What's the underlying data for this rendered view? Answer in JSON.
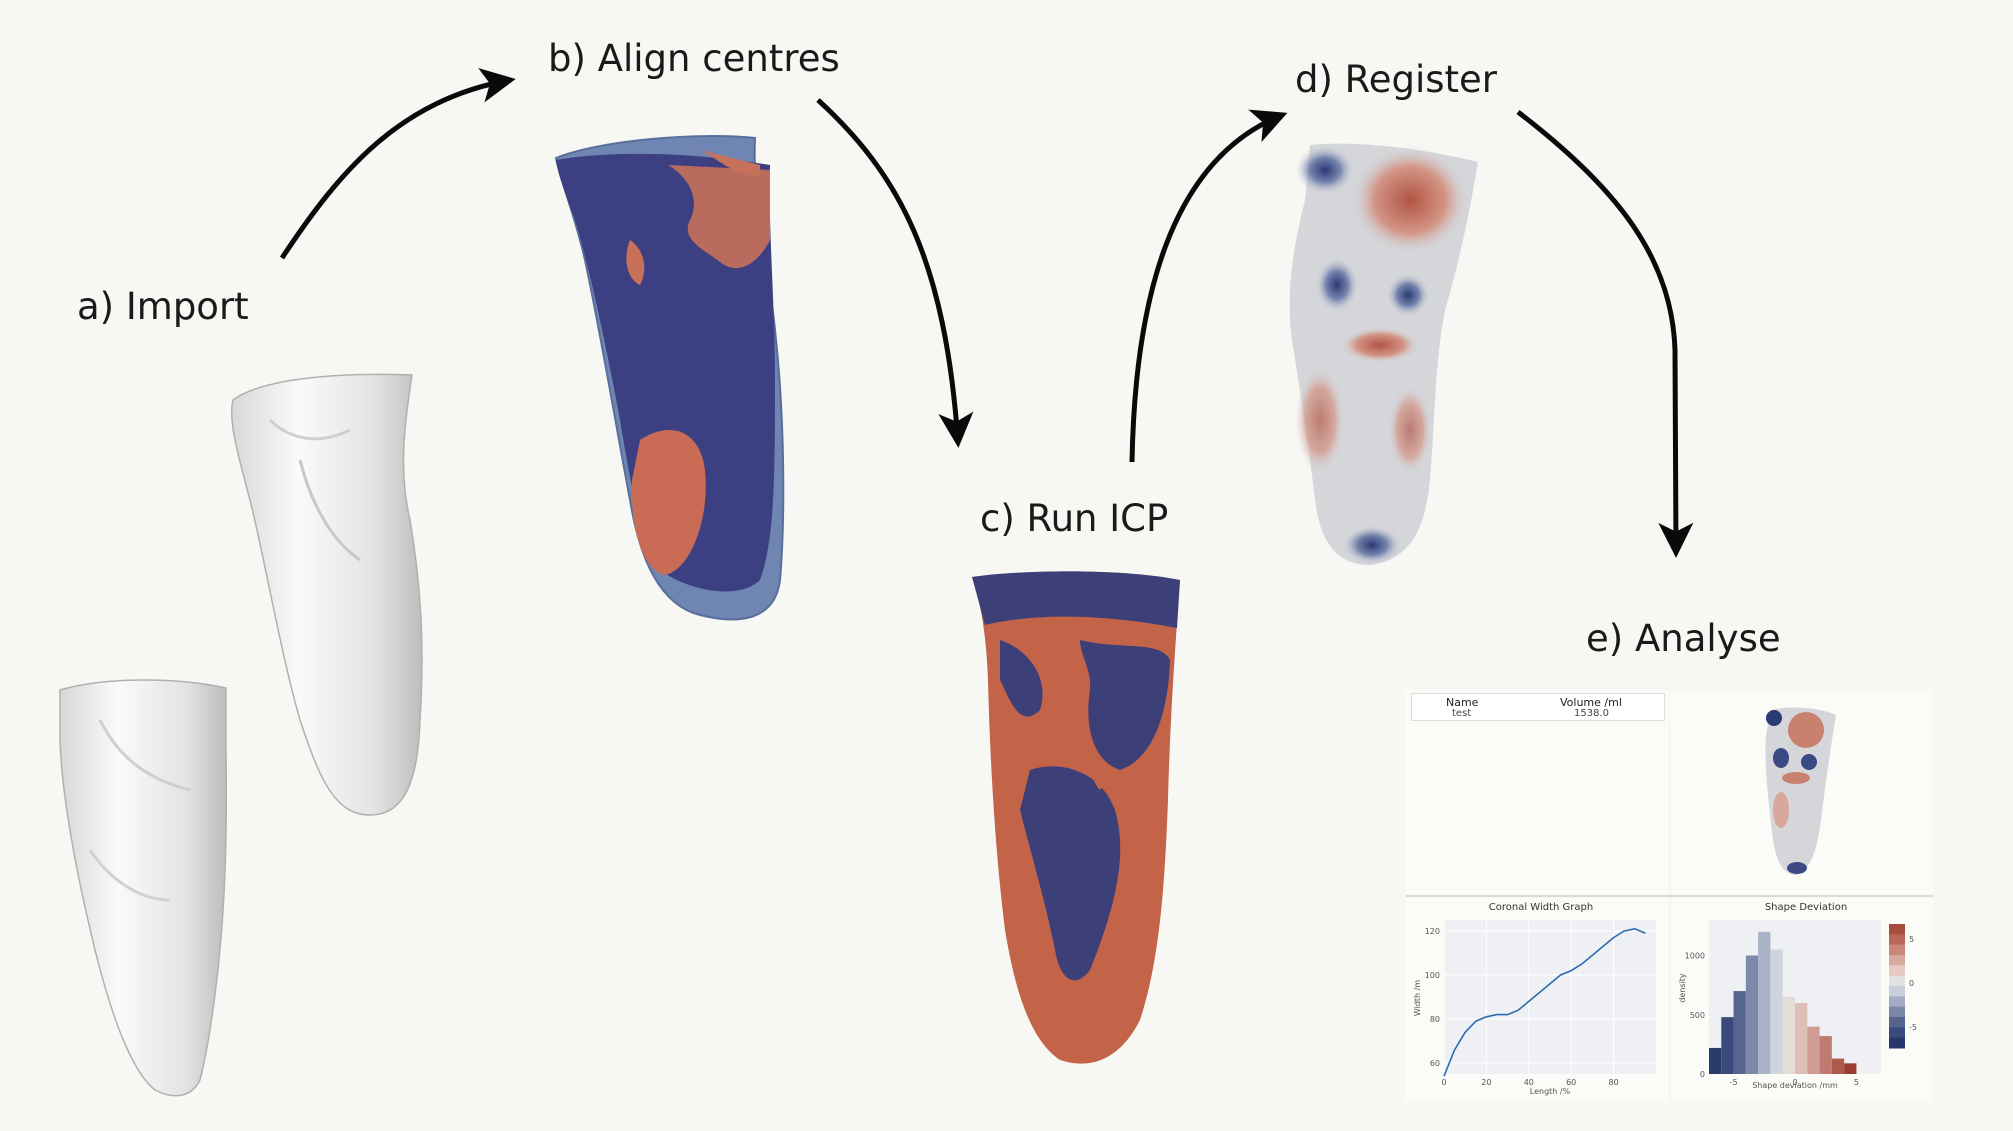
{
  "steps": {
    "import": "a) Import",
    "align": "b) Align centres",
    "icp": "c) Run ICP",
    "register": "d) Register",
    "analyse": "e) Analyse"
  },
  "analysis": {
    "table": {
      "col_name": "Name",
      "col_volume": "Volume /ml",
      "row_name": "test",
      "row_volume": "1538.0"
    },
    "width_chart": {
      "title": "Coronal Width Graph",
      "xlabel": "Length /%",
      "ylabel": "Width /m",
      "x_ticks": [
        "0",
        "20",
        "40",
        "60",
        "80"
      ],
      "y_ticks": [
        "60",
        "80",
        "100",
        "120"
      ]
    },
    "deviation_chart": {
      "title": "Shape Deviation",
      "xlabel": "Shape deviation /mm",
      "ylabel": "density",
      "x_ticks": [
        "-5",
        "0",
        "5"
      ],
      "y_ticks": [
        "0",
        "500",
        "1000"
      ],
      "colorbar_ticks": [
        "5",
        "0",
        "-5"
      ]
    }
  },
  "chart_data": [
    {
      "type": "line",
      "title": "Coronal Width Graph",
      "xlabel": "Length /%",
      "ylabel": "Width /m",
      "xlim": [
        0,
        100
      ],
      "ylim": [
        55,
        125
      ],
      "x": [
        0,
        5,
        10,
        15,
        20,
        25,
        30,
        35,
        40,
        45,
        50,
        55,
        60,
        65,
        70,
        75,
        80,
        85,
        90,
        95
      ],
      "series": [
        {
          "values": [
            54,
            66,
            74,
            79,
            81,
            82,
            82,
            84,
            88,
            92,
            96,
            100,
            102,
            105,
            109,
            113,
            117,
            120,
            121,
            119
          ],
          "color": "#2b6cb0"
        }
      ]
    },
    {
      "type": "bar",
      "title": "Shape Deviation",
      "xlabel": "Shape deviation /mm",
      "ylabel": "density",
      "xlim": [
        -7,
        7
      ],
      "ylim": [
        0,
        1300
      ],
      "bins": [
        -6.5,
        -5.5,
        -4.5,
        -3.5,
        -2.5,
        -1.5,
        -0.5,
        0.5,
        1.5,
        2.5,
        3.5,
        4.5,
        5.5,
        6.5
      ],
      "values": [
        220,
        480,
        700,
        1000,
        1200,
        1050,
        650,
        600,
        400,
        320,
        130,
        90,
        0,
        0
      ],
      "colors": [
        "#2a3a6a",
        "#3a4a7d",
        "#56658f",
        "#7d89a8",
        "#a9b2c6",
        "#cfd5df",
        "#e5dcd8",
        "#ddbfb8",
        "#cf9d94",
        "#bf7b70",
        "#ad5a4c",
        "#9a3d2e",
        "#9a3d2e",
        "#9a3d2e"
      ]
    }
  ]
}
